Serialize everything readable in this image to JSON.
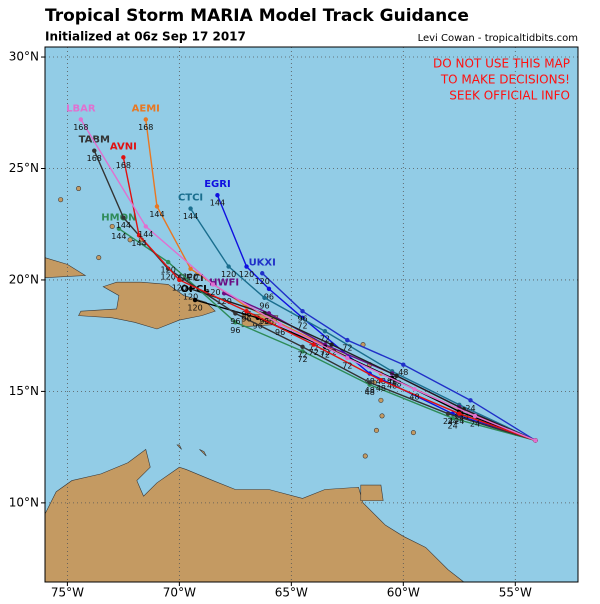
{
  "header": {
    "title": "Tropical Storm MARIA Model Track Guidance",
    "subtitle": "Initialized at 06z Sep 17 2017",
    "credit": "Levi Cowan - tropicaltidbits.com"
  },
  "warning": [
    "DO NOT USE THIS MAP",
    "TO MAKE DECISIONS!",
    "SEEK OFFICIAL INFO"
  ],
  "map": {
    "xlim": [
      -76,
      -52.2
    ],
    "ylim": [
      6.45,
      30.45
    ],
    "xticks": [
      {
        "value": -75,
        "label": "75°W"
      },
      {
        "value": -70,
        "label": "70°W"
      },
      {
        "value": -65,
        "label": "65°W"
      },
      {
        "value": -60,
        "label": "60°W"
      },
      {
        "value": -55,
        "label": "55°W"
      }
    ],
    "yticks": [
      {
        "value": 10,
        "label": "10°N"
      },
      {
        "value": 15,
        "label": "15°N"
      },
      {
        "value": 20,
        "label": "20°N"
      },
      {
        "value": 25,
        "label": "25°N"
      },
      {
        "value": 30,
        "label": "30°N"
      }
    ],
    "grid": true,
    "forecast_hours": [
      0,
      24,
      48,
      72,
      96,
      120,
      144,
      168
    ],
    "tracks": [
      {
        "name": "AEMI",
        "color": "#e87722",
        "lon": [
          -54.1,
          -57.5,
          -61,
          -64,
          -67,
          -69.5,
          -71,
          -71.5
        ],
        "lat": [
          12.8,
          14.2,
          15.8,
          17.3,
          18.8,
          20.5,
          23.3,
          27.2
        ]
      },
      {
        "name": "EGRI",
        "color": "#1010e0",
        "lon": [
          -54.1,
          -57.8,
          -61.5,
          -64.5,
          -66,
          -67,
          -68.3
        ],
        "lat": [
          12.8,
          14,
          15.8,
          18.3,
          19.6,
          20.6,
          23.8
        ]
      },
      {
        "name": "CTCI",
        "color": "#1a6e8e",
        "lon": [
          -54.1,
          -57.5,
          -60.5,
          -63.5,
          -66.2,
          -67.8,
          -69.5
        ],
        "lat": [
          12.8,
          14.4,
          15.9,
          17.7,
          19.2,
          20.6,
          23.2
        ]
      },
      {
        "name": "UKXI",
        "color": "#2030c8",
        "lon": [
          -54.1,
          -57,
          -60,
          -62.5,
          -64.5,
          -66.3
        ],
        "lat": [
          12.8,
          14.6,
          16.2,
          17.3,
          18.6,
          20.3
        ]
      },
      {
        "name": "HWFI",
        "color": "#6a0d83",
        "lon": [
          -54.1,
          -57.5,
          -60.5,
          -63.5,
          -66,
          -68
        ],
        "lat": [
          12.8,
          14.3,
          15.8,
          17.1,
          18.5,
          19.4
        ]
      },
      {
        "name": "OFCI",
        "color": "#202020",
        "lon": [
          -54.1,
          -57.3,
          -60.3,
          -63.2,
          -66.2,
          -69.5
        ],
        "lat": [
          12.8,
          14.2,
          15.7,
          17.1,
          18.5,
          19.6
        ]
      },
      {
        "name": "OFCL",
        "color": "#000000",
        "lon": [
          -54.1,
          -57.5,
          -60.5,
          -63.5,
          -66.5,
          -69.3
        ],
        "lat": [
          12.8,
          14.1,
          15.6,
          17,
          18.3,
          19.1
        ]
      },
      {
        "name": "HMON",
        "color": "#2e8b57",
        "lon": [
          -54.1,
          -57.8,
          -61.5,
          -64.5,
          -67.5,
          -70.5,
          -72.7
        ],
        "lat": [
          12.8,
          13.8,
          15.3,
          16.8,
          18.1,
          20.8,
          22.3
        ]
      },
      {
        "name": "TABM",
        "color": "#333333",
        "lon": [
          -54.1,
          -58,
          -61.5,
          -64.5,
          -67.5,
          -70.5,
          -72.5,
          -73.8
        ],
        "lat": [
          12.8,
          14,
          15.4,
          17,
          18.5,
          20.5,
          22.8,
          25.8
        ]
      },
      {
        "name": "AVNI",
        "color": "#e01010",
        "lon": [
          -54.1,
          -57.5,
          -61,
          -64,
          -67,
          -70,
          -71.8,
          -72.5
        ],
        "lat": [
          12.8,
          14,
          15.5,
          17.1,
          18.6,
          20,
          22,
          25.5
        ]
      },
      {
        "name": "LBAR",
        "color": "#e070d0",
        "lon": [
          -54.1,
          -56.8,
          -59.5,
          -62.5,
          -65.5,
          -68.5,
          -71.5,
          -74.4
        ],
        "lat": [
          12.8,
          13.9,
          15.1,
          16.5,
          18,
          19.8,
          22.4,
          27.2
        ]
      }
    ]
  }
}
